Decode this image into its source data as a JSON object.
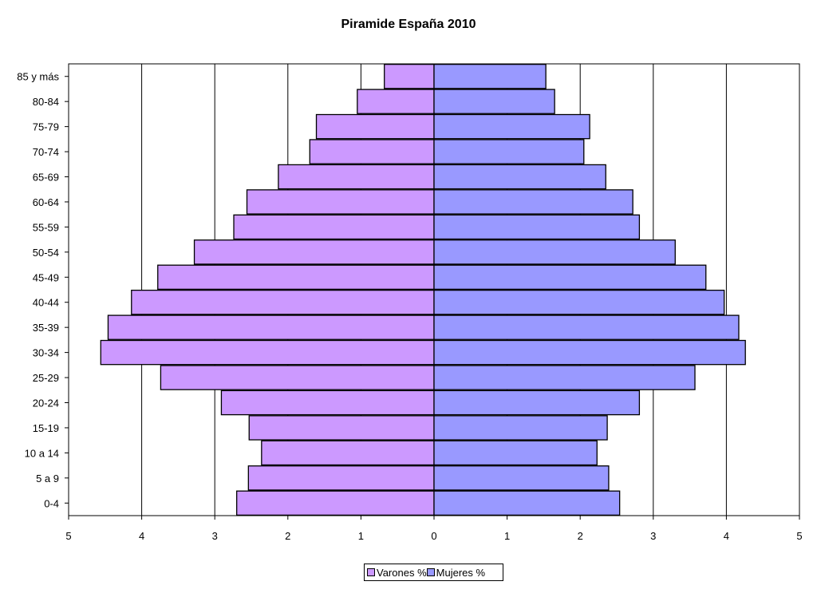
{
  "chart_data": {
    "type": "bar",
    "title": "Piramide España 2010",
    "categories": [
      "0-4",
      "5 a 9",
      "10 a 14",
      "15-19",
      "20-24",
      "25-29",
      "30-34",
      "35-39",
      "40-44",
      "45-49",
      "50-54",
      "55-59",
      "60-64",
      "65-69",
      "70-74",
      "75-79",
      "80-84",
      "85 y más"
    ],
    "series": [
      {
        "name": "Varones %",
        "color": "#cc99ff",
        "values": [
          2.7,
          2.54,
          2.36,
          2.53,
          2.91,
          3.74,
          4.56,
          4.46,
          4.14,
          3.78,
          3.28,
          2.74,
          2.56,
          2.13,
          1.7,
          1.61,
          1.05,
          0.68
        ]
      },
      {
        "name": "Mujeres %",
        "color": "#9999ff",
        "values": [
          2.54,
          2.39,
          2.23,
          2.37,
          2.81,
          3.57,
          4.26,
          4.17,
          3.97,
          3.72,
          3.3,
          2.81,
          2.72,
          2.35,
          2.05,
          2.13,
          1.65,
          1.53
        ]
      }
    ],
    "xlim": [
      -5,
      5
    ],
    "xtick_labels": [
      "5",
      "4",
      "3",
      "2",
      "1",
      "0",
      "1",
      "2",
      "3",
      "4",
      "5"
    ],
    "orientation": "horizontal",
    "grid": true,
    "legend_position": "bottom"
  }
}
